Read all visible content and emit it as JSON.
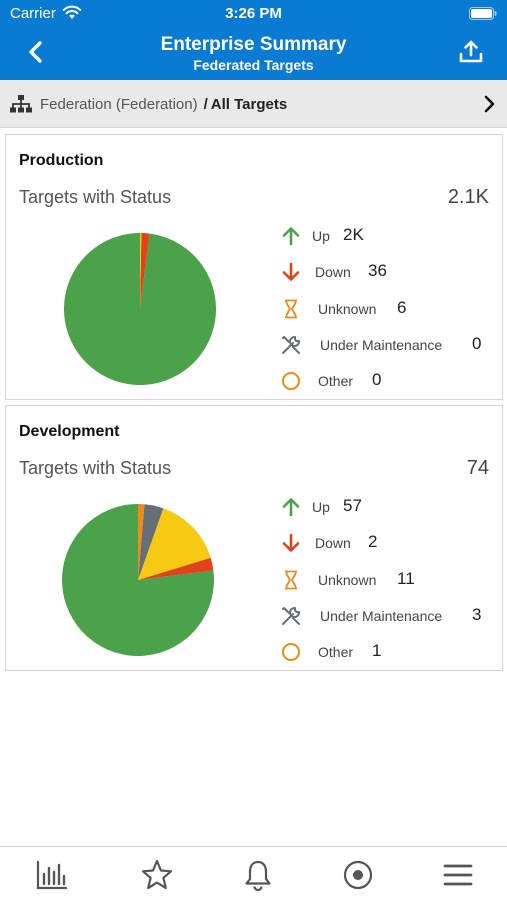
{
  "status_bar": {
    "carrier": "Carrier",
    "time": "3:26 PM"
  },
  "header": {
    "title": "Enterprise Summary",
    "subtitle": "Federated Targets"
  },
  "breadcrumb": {
    "parent": "Federation (Federation)",
    "separator": "/",
    "current": "All Targets"
  },
  "colors": {
    "header_bg": "#0a7bd3",
    "up": "#4ca24a",
    "down": "#e0421b",
    "unknown": "#f6c913",
    "maintenance": "#666e76",
    "other": "#ef8a16"
  },
  "legend_icons": [
    "arrow-up-icon",
    "arrow-down-icon",
    "hourglass-icon",
    "wrench-icon",
    "circle-outline-icon"
  ],
  "cards": [
    {
      "title": "Production",
      "label": "Targets with Status",
      "total": "2.1K",
      "items": [
        {
          "label": "Up",
          "value": "2K"
        },
        {
          "label": "Down",
          "value": "36"
        },
        {
          "label": "Unknown",
          "value": "6"
        },
        {
          "label": "Under Maintenance",
          "value": "0"
        },
        {
          "label": "Other",
          "value": "0"
        }
      ]
    },
    {
      "title": "Development",
      "label": "Targets with Status",
      "total": "74",
      "items": [
        {
          "label": "Up",
          "value": "57"
        },
        {
          "label": "Down",
          "value": "2"
        },
        {
          "label": "Unknown",
          "value": "11"
        },
        {
          "label": "Under Maintenance",
          "value": "3"
        },
        {
          "label": "Other",
          "value": "1"
        }
      ]
    }
  ],
  "chart_data": [
    {
      "type": "pie",
      "categories": [
        "Up",
        "Down",
        "Unknown",
        "Under Maintenance",
        "Other"
      ],
      "values": [
        2058,
        36,
        6,
        0,
        0
      ]
    },
    {
      "type": "pie",
      "categories": [
        "Up",
        "Down",
        "Unknown",
        "Under Maintenance",
        "Other"
      ],
      "values": [
        57,
        2,
        11,
        3,
        1
      ]
    }
  ],
  "tab_bar": [
    "chart-icon",
    "star-icon",
    "bell-icon",
    "target-icon",
    "menu-icon"
  ]
}
